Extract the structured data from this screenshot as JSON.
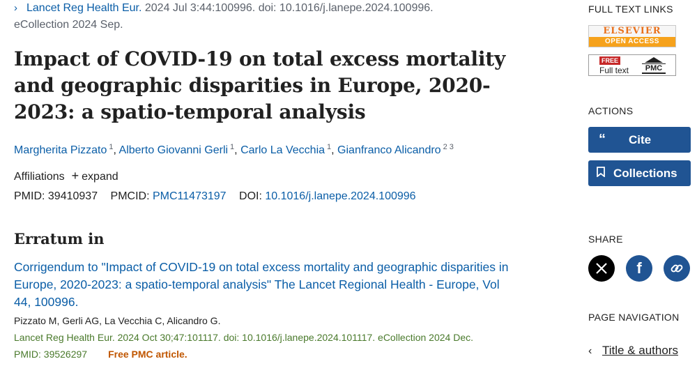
{
  "citation": {
    "journal": "Lancet Reg Health Eur.",
    "rest": " 2024 Jul 3:44:100996. doi: 10.1016/j.lanepe.2024.100996.",
    "line2": "eCollection 2024 Sep."
  },
  "title": "Impact of COVID-19 on total excess mortality and geographic disparities in Europe, 2020-2023: a spatio-temporal analysis",
  "authors": [
    {
      "name": "Margherita Pizzato",
      "sup": "1"
    },
    {
      "name": "Alberto Giovanni Gerli",
      "sup": "1"
    },
    {
      "name": "Carlo La Vecchia",
      "sup": "1"
    },
    {
      "name": "Gianfranco Alicandro",
      "sup": "2 3"
    }
  ],
  "affiliations": {
    "label": "Affiliations",
    "expand": "expand"
  },
  "ids": {
    "pmid_label": "PMID:",
    "pmid": "39410937",
    "pmcid_label": "PMCID:",
    "pmcid": "PMC11473197",
    "doi_label": "DOI:",
    "doi": "10.1016/j.lanepe.2024.100996"
  },
  "erratum": {
    "heading": "Erratum in",
    "link": "Corrigendum to \"Impact of COVID-19 on total excess mortality and geographic disparities in Europe, 2020-2023: a spatio-temporal analysis\" The Lancet Regional Health - Europe, Vol 44, 100996.",
    "authors": "Pizzato M, Gerli AG, La Vecchia C, Alicandro G.",
    "cite": "Lancet Reg Health Eur. 2024 Oct 30;47:101117. doi: 10.1016/j.lanepe.2024.101117. eCollection 2024 Dec.",
    "pmid": "PMID: 39526297",
    "free": "Free PMC article."
  },
  "sidebar": {
    "full_text_heading": "FULL TEXT LINKS",
    "elsevier_top": "ELSEVIER",
    "elsevier_bottom": "OPEN ACCESS",
    "pmc_free": "FREE",
    "pmc_fulltext": "Full text",
    "pmc_logo": "PMC",
    "actions_heading": "ACTIONS",
    "cite_label": "Cite",
    "collections_label": "Collections",
    "share_heading": "SHARE",
    "page_nav_heading": "PAGE NAVIGATION",
    "page_nav_item": "Title & authors"
  },
  "icons": {
    "journal_chevron": "chevron-right-icon",
    "cite": "quote-icon",
    "collections": "bookmark-icon",
    "x": "x-logo-icon",
    "facebook": "facebook-icon",
    "link": "link-icon",
    "nav_chevron": "chevron-left-icon"
  },
  "colors": {
    "link": "#0b5ea7",
    "button": "#205493",
    "free_pmc": "#c05600",
    "citation_green": "#4a7a2c"
  }
}
